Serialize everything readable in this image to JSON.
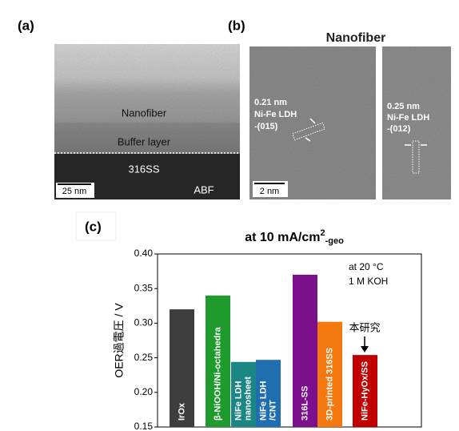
{
  "panel_a": {
    "label": "(a)",
    "nanofiber": "Nanofiber",
    "buffer": "Buffer layer",
    "substrate": "316SS",
    "scale": "25 nm",
    "mode": "ABF"
  },
  "panel_b": {
    "label": "(b)",
    "title": "Nanofiber",
    "left": [
      "0.21 nm",
      "Ni-Fe LDH",
      "-(015)"
    ],
    "right": [
      "0.25 nm",
      "Ni-Fe LDH",
      "-(012)"
    ],
    "scale": "2 nm"
  },
  "chart_data": {
    "type": "bar",
    "panel_label": "(c)",
    "title": [
      "at 10 mA/cm",
      "2",
      "-geo"
    ],
    "y_label": "OER過電圧 / V",
    "categories": [
      [
        "IrOx"
      ],
      [
        "β-NiOOH/Ni-octahedra"
      ],
      [
        "NiFe LDH",
        "nanosheet"
      ],
      [
        "NiFe LDH",
        "/CNT"
      ],
      [
        "316L-SS"
      ],
      [
        "3D-printed 316SS"
      ],
      [
        "NiFe-HyOx/SS"
      ]
    ],
    "values": [
      0.32,
      0.34,
      0.244,
      0.247,
      0.37,
      0.302,
      0.254
    ],
    "colors": [
      "#3d3d3d",
      "#1f9a2c",
      "#1b8785",
      "#1f6fb0",
      "#7b0f8c",
      "#f2780f",
      "#c00000"
    ],
    "ylim": [
      0.15,
      0.4
    ],
    "yticks": [
      0.15,
      {
        "value": 0.2,
        "label": "0.20"
      },
      0.25,
      {
        "value": 0.3,
        "label": "0.30"
      },
      0.35,
      {
        "value": 0.4,
        "label": "0.40"
      }
    ],
    "annotations": [
      "at 20 °C",
      "1 M KOH",
      "本研究"
    ]
  }
}
